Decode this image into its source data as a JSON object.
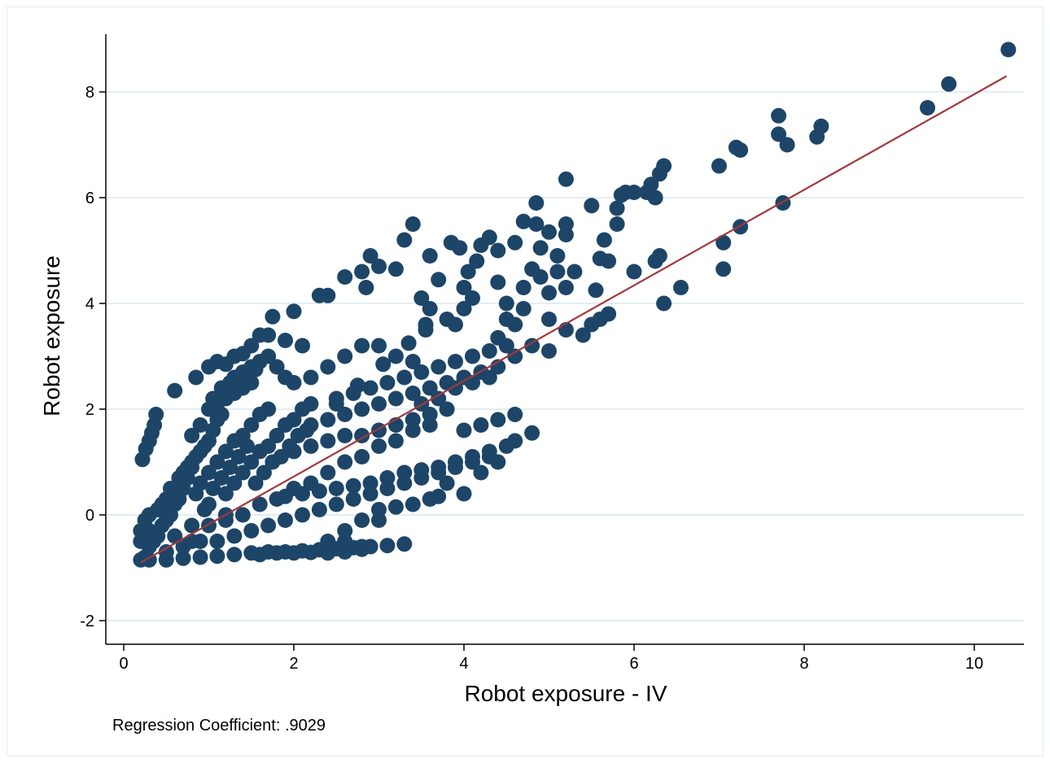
{
  "chart_data": {
    "type": "scatter",
    "xlabel": "Robot exposure - IV",
    "ylabel": "Robot exposure",
    "note": "Regression Coefficient: .9029",
    "xlim": [
      -0.2,
      10.6
    ],
    "ylim": [
      -2.5,
      9.0
    ],
    "x_ticks": [
      0,
      2,
      4,
      6,
      8,
      10
    ],
    "y_ticks": [
      -2,
      0,
      2,
      4,
      6,
      8
    ],
    "grid": "horizontal",
    "colors": {
      "points": "#1d4568",
      "fit_line": "#a0393c",
      "grid": "#e4edf2"
    },
    "fit_line": {
      "x": [
        0.2,
        10.38
      ],
      "y": [
        -0.9,
        8.3
      ],
      "slope": 0.9029
    },
    "points": [
      [
        0.2,
        -0.85
      ],
      [
        0.25,
        -0.8
      ],
      [
        0.3,
        -0.6
      ],
      [
        0.35,
        -0.5
      ],
      [
        0.4,
        -0.4
      ],
      [
        0.45,
        -0.2
      ],
      [
        0.5,
        -0.1
      ],
      [
        0.55,
        0.0
      ],
      [
        0.6,
        0.2
      ],
      [
        0.65,
        0.3
      ],
      [
        0.7,
        0.5
      ],
      [
        0.75,
        0.7
      ],
      [
        0.8,
        0.9
      ],
      [
        0.85,
        1.1
      ],
      [
        0.9,
        1.2
      ],
      [
        0.95,
        1.3
      ],
      [
        1.0,
        1.4
      ],
      [
        1.05,
        1.6
      ],
      [
        1.1,
        1.8
      ],
      [
        1.15,
        1.9
      ],
      [
        0.3,
        -0.3
      ],
      [
        0.4,
        0.1
      ],
      [
        0.5,
        0.3
      ],
      [
        0.6,
        0.5
      ],
      [
        0.7,
        0.8
      ],
      [
        0.8,
        1.0
      ],
      [
        0.9,
        0.6
      ],
      [
        1.0,
        0.8
      ],
      [
        1.1,
        1.0
      ],
      [
        1.2,
        1.2
      ],
      [
        1.3,
        1.4
      ],
      [
        1.4,
        1.5
      ],
      [
        1.5,
        1.7
      ],
      [
        1.6,
        1.9
      ],
      [
        1.7,
        2.0
      ],
      [
        1.2,
        0.4
      ],
      [
        1.3,
        0.6
      ],
      [
        1.4,
        0.8
      ],
      [
        1.5,
        1.0
      ],
      [
        1.6,
        1.2
      ],
      [
        1.7,
        1.3
      ],
      [
        1.8,
        1.5
      ],
      [
        1.9,
        1.7
      ],
      [
        2.0,
        1.8
      ],
      [
        2.1,
        2.0
      ],
      [
        2.2,
        2.1
      ],
      [
        1.0,
        -0.2
      ],
      [
        1.2,
        -0.1
      ],
      [
        1.4,
        0.0
      ],
      [
        1.6,
        0.2
      ],
      [
        1.8,
        0.3
      ],
      [
        2.0,
        0.5
      ],
      [
        2.2,
        0.6
      ],
      [
        2.4,
        0.8
      ],
      [
        2.6,
        1.0
      ],
      [
        2.8,
        1.1
      ],
      [
        3.0,
        1.3
      ],
      [
        3.2,
        1.4
      ],
      [
        3.4,
        1.6
      ],
      [
        3.6,
        1.7
      ],
      [
        0.5,
        -0.7
      ],
      [
        0.7,
        -0.6
      ],
      [
        0.9,
        -0.5
      ],
      [
        1.1,
        -0.5
      ],
      [
        1.3,
        -0.4
      ],
      [
        1.5,
        -0.3
      ],
      [
        1.7,
        -0.2
      ],
      [
        1.9,
        -0.1
      ],
      [
        2.1,
        0.0
      ],
      [
        2.3,
        0.1
      ],
      [
        2.5,
        0.2
      ],
      [
        2.7,
        0.3
      ],
      [
        2.9,
        0.4
      ],
      [
        3.1,
        0.5
      ],
      [
        3.3,
        0.6
      ],
      [
        3.5,
        0.7
      ],
      [
        3.7,
        0.8
      ],
      [
        3.9,
        0.9
      ],
      [
        4.1,
        1.0
      ],
      [
        4.3,
        1.1
      ],
      [
        0.3,
        -0.85
      ],
      [
        0.5,
        -0.85
      ],
      [
        0.7,
        -0.82
      ],
      [
        0.9,
        -0.8
      ],
      [
        1.1,
        -0.78
      ],
      [
        1.3,
        -0.75
      ],
      [
        1.5,
        -0.72
      ],
      [
        1.7,
        -0.7
      ],
      [
        1.9,
        -0.7
      ],
      [
        2.1,
        -0.68
      ],
      [
        2.3,
        -0.66
      ],
      [
        2.5,
        -0.64
      ],
      [
        2.7,
        -0.62
      ],
      [
        2.9,
        -0.6
      ],
      [
        3.1,
        -0.58
      ],
      [
        3.3,
        -0.55
      ],
      [
        0.2,
        -0.5
      ],
      [
        0.2,
        -0.3
      ],
      [
        0.25,
        -0.1
      ],
      [
        0.3,
        0.0
      ],
      [
        0.22,
        1.05
      ],
      [
        0.26,
        1.25
      ],
      [
        0.3,
        1.4
      ],
      [
        0.33,
        1.55
      ],
      [
        0.36,
        1.7
      ],
      [
        0.38,
        1.9
      ],
      [
        0.6,
        2.35
      ],
      [
        0.85,
        2.6
      ],
      [
        1.0,
        2.8
      ],
      [
        1.1,
        2.9
      ],
      [
        1.2,
        2.85
      ],
      [
        1.3,
        3.0
      ],
      [
        1.4,
        3.05
      ],
      [
        1.5,
        3.2
      ],
      [
        1.6,
        3.4
      ],
      [
        1.7,
        3.4
      ],
      [
        1.75,
        3.75
      ],
      [
        2.0,
        3.85
      ],
      [
        2.3,
        4.15
      ],
      [
        1.3,
        2.6
      ],
      [
        1.4,
        2.7
      ],
      [
        1.5,
        2.8
      ],
      [
        1.6,
        2.9
      ],
      [
        1.7,
        3.0
      ],
      [
        1.8,
        2.8
      ],
      [
        1.9,
        2.6
      ],
      [
        2.0,
        2.5
      ],
      [
        2.2,
        2.6
      ],
      [
        2.4,
        2.8
      ],
      [
        2.6,
        3.0
      ],
      [
        2.8,
        3.2
      ],
      [
        3.0,
        3.2
      ],
      [
        3.2,
        3.0
      ],
      [
        3.4,
        2.9
      ],
      [
        2.5,
        2.2
      ],
      [
        2.7,
        2.3
      ],
      [
        2.9,
        2.4
      ],
      [
        3.1,
        2.5
      ],
      [
        3.3,
        2.6
      ],
      [
        3.5,
        2.7
      ],
      [
        3.7,
        2.8
      ],
      [
        3.9,
        2.9
      ],
      [
        4.1,
        3.0
      ],
      [
        4.3,
        3.1
      ],
      [
        4.5,
        3.2
      ],
      [
        2.2,
        1.7
      ],
      [
        2.4,
        1.8
      ],
      [
        2.6,
        1.9
      ],
      [
        2.8,
        2.0
      ],
      [
        3.0,
        2.1
      ],
      [
        3.2,
        2.2
      ],
      [
        3.4,
        2.3
      ],
      [
        3.6,
        2.4
      ],
      [
        3.8,
        2.5
      ],
      [
        4.0,
        2.6
      ],
      [
        4.2,
        2.7
      ],
      [
        4.4,
        2.8
      ],
      [
        4.6,
        3.0
      ],
      [
        4.8,
        3.2
      ],
      [
        2.6,
        4.5
      ],
      [
        2.8,
        4.6
      ],
      [
        3.0,
        4.7
      ],
      [
        2.9,
        4.9
      ],
      [
        2.85,
        4.3
      ],
      [
        3.2,
        4.65
      ],
      [
        3.3,
        5.2
      ],
      [
        3.4,
        5.5
      ],
      [
        3.6,
        4.9
      ],
      [
        3.5,
        4.1
      ],
      [
        3.7,
        4.45
      ],
      [
        3.6,
        3.9
      ],
      [
        3.55,
        3.6
      ],
      [
        3.8,
        3.7
      ],
      [
        3.9,
        3.6
      ],
      [
        4.0,
        3.9
      ],
      [
        4.1,
        4.1
      ],
      [
        4.0,
        4.3
      ],
      [
        4.05,
        4.6
      ],
      [
        4.15,
        4.8
      ],
      [
        4.2,
        5.1
      ],
      [
        4.3,
        5.25
      ],
      [
        3.85,
        5.15
      ],
      [
        3.95,
        5.05
      ],
      [
        4.4,
        5.0
      ],
      [
        4.6,
        5.15
      ],
      [
        4.4,
        4.4
      ],
      [
        4.5,
        4.0
      ],
      [
        4.5,
        3.7
      ],
      [
        4.4,
        3.35
      ],
      [
        4.6,
        3.6
      ],
      [
        4.7,
        3.9
      ],
      [
        4.7,
        4.3
      ],
      [
        4.8,
        4.65
      ],
      [
        4.9,
        4.5
      ],
      [
        5.0,
        4.2
      ],
      [
        4.9,
        5.05
      ],
      [
        5.0,
        5.35
      ],
      [
        4.7,
        5.55
      ],
      [
        4.85,
        5.5
      ],
      [
        4.85,
        5.9
      ],
      [
        5.2,
        5.5
      ],
      [
        5.2,
        5.3
      ],
      [
        5.1,
        4.9
      ],
      [
        5.1,
        4.6
      ],
      [
        5.2,
        4.3
      ],
      [
        5.2,
        6.35
      ],
      [
        5.3,
        4.6
      ],
      [
        5.5,
        5.85
      ],
      [
        5.6,
        4.85
      ],
      [
        5.65,
        5.2
      ],
      [
        5.7,
        4.8
      ],
      [
        5.55,
        4.25
      ],
      [
        5.0,
        3.1
      ],
      [
        5.0,
        3.7
      ],
      [
        5.2,
        3.5
      ],
      [
        5.4,
        3.4
      ],
      [
        5.5,
        3.6
      ],
      [
        5.6,
        3.7
      ],
      [
        5.7,
        3.8
      ],
      [
        5.8,
        5.5
      ],
      [
        5.8,
        5.8
      ],
      [
        5.85,
        6.05
      ],
      [
        5.9,
        6.1
      ],
      [
        6.0,
        6.1
      ],
      [
        6.15,
        6.1
      ],
      [
        6.2,
        6.25
      ],
      [
        6.25,
        6.0
      ],
      [
        6.3,
        6.45
      ],
      [
        6.35,
        6.6
      ],
      [
        6.25,
        4.8
      ],
      [
        6.3,
        4.9
      ],
      [
        6.0,
        4.6
      ],
      [
        6.35,
        4.0
      ],
      [
        6.55,
        4.3
      ],
      [
        7.0,
        6.6
      ],
      [
        7.2,
        6.95
      ],
      [
        7.25,
        6.9
      ],
      [
        7.05,
        5.15
      ],
      [
        7.25,
        5.45
      ],
      [
        7.05,
        4.65
      ],
      [
        7.7,
        7.55
      ],
      [
        7.7,
        7.2
      ],
      [
        7.8,
        7.0
      ],
      [
        8.15,
        7.15
      ],
      [
        8.2,
        7.35
      ],
      [
        7.75,
        5.9
      ],
      [
        9.45,
        7.7
      ],
      [
        9.7,
        8.15
      ],
      [
        10.4,
        8.8
      ],
      [
        2.4,
        4.15
      ],
      [
        2.0,
        1.2
      ],
      [
        2.2,
        1.3
      ],
      [
        2.4,
        1.4
      ],
      [
        2.6,
        1.5
      ],
      [
        2.8,
        1.5
      ],
      [
        3.0,
        1.6
      ],
      [
        3.2,
        1.7
      ],
      [
        3.4,
        1.8
      ],
      [
        3.6,
        1.9
      ],
      [
        3.8,
        2.0
      ],
      [
        4.0,
        1.6
      ],
      [
        4.2,
        1.7
      ],
      [
        4.4,
        1.8
      ],
      [
        4.6,
        1.9
      ],
      [
        4.8,
        1.55
      ],
      [
        4.5,
        1.3
      ],
      [
        4.6,
        1.4
      ],
      [
        4.3,
        1.2
      ],
      [
        4.1,
        1.1
      ],
      [
        3.9,
        1.0
      ],
      [
        3.7,
        0.9
      ],
      [
        3.5,
        0.85
      ],
      [
        3.3,
        0.8
      ],
      [
        3.1,
        0.7
      ],
      [
        2.9,
        0.6
      ],
      [
        2.7,
        0.55
      ],
      [
        2.5,
        0.5
      ],
      [
        2.3,
        0.45
      ],
      [
        2.1,
        0.4
      ],
      [
        1.9,
        0.35
      ],
      [
        3.6,
        0.3
      ],
      [
        3.7,
        0.35
      ],
      [
        3.4,
        0.2
      ],
      [
        3.2,
        0.15
      ],
      [
        3.0,
        0.1
      ],
      [
        2.8,
        -0.1
      ],
      [
        2.6,
        -0.3
      ],
      [
        2.4,
        -0.5
      ],
      [
        2.6,
        -0.5
      ],
      [
        2.8,
        -0.6
      ],
      [
        3.0,
        -0.1
      ],
      [
        4.0,
        0.4
      ],
      [
        3.8,
        0.6
      ],
      [
        4.2,
        0.8
      ],
      [
        4.4,
        1.0
      ],
      [
        3.5,
        2.1
      ],
      [
        3.7,
        2.2
      ],
      [
        3.9,
        2.4
      ],
      [
        4.1,
        2.5
      ],
      [
        4.3,
        2.6
      ],
      [
        1.8,
        -0.72
      ],
      [
        2.0,
        -0.72
      ],
      [
        2.2,
        -0.71
      ],
      [
        2.4,
        -0.72
      ],
      [
        2.6,
        -0.7
      ],
      [
        2.8,
        -0.65
      ],
      [
        1.6,
        -0.75
      ],
      [
        0.8,
        -0.2
      ],
      [
        1.0,
        0.2
      ],
      [
        1.2,
        0.0
      ],
      [
        0.6,
        -0.4
      ],
      [
        0.8,
        -0.5
      ],
      [
        0.45,
        0.2
      ],
      [
        0.55,
        0.5
      ],
      [
        0.65,
        0.7
      ],
      [
        0.75,
        0.9
      ],
      [
        0.85,
        0.4
      ],
      [
        0.95,
        0.1
      ],
      [
        1.05,
        0.5
      ],
      [
        1.15,
        0.7
      ],
      [
        1.25,
        0.9
      ],
      [
        1.35,
        1.1
      ],
      [
        1.45,
        1.3
      ],
      [
        1.55,
        0.6
      ],
      [
        1.65,
        0.8
      ],
      [
        1.75,
        1.0
      ],
      [
        1.85,
        1.1
      ],
      [
        1.95,
        1.3
      ],
      [
        2.05,
        1.5
      ],
      [
        2.15,
        1.6
      ],
      [
        1.1,
        2.1
      ],
      [
        1.2,
        2.2
      ],
      [
        1.3,
        2.3
      ],
      [
        1.4,
        2.4
      ],
      [
        1.5,
        2.5
      ],
      [
        0.9,
        1.7
      ],
      [
        0.8,
        1.5
      ],
      [
        1.0,
        2.0
      ],
      [
        1.05,
        2.2
      ],
      [
        1.15,
        2.4
      ],
      [
        1.25,
        2.5
      ],
      [
        1.45,
        2.65
      ],
      [
        1.55,
        2.75
      ],
      [
        1.9,
        3.3
      ],
      [
        2.1,
        3.2
      ],
      [
        2.5,
        2.1
      ],
      [
        2.75,
        2.45
      ],
      [
        3.05,
        2.85
      ],
      [
        3.35,
        3.25
      ],
      [
        3.55,
        3.5
      ]
    ]
  }
}
